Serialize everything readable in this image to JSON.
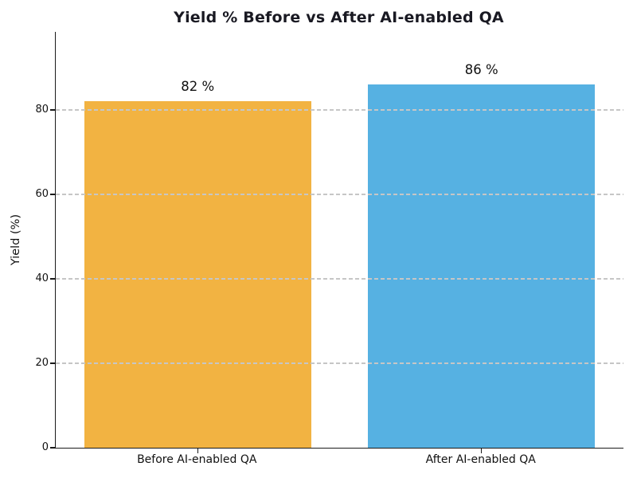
{
  "figure": {
    "background": "#ffffff"
  },
  "chart_data": {
    "type": "bar",
    "title": "Yield % Before vs After AI-enabled QA",
    "categories": [
      "Before AI-enabled QA",
      "After AI-enabled QA"
    ],
    "values": [
      82,
      86
    ],
    "value_labels": [
      "82 %",
      "86 %"
    ],
    "bar_colors": [
      "#F2B342",
      "#56B1E2"
    ],
    "xlabel": "",
    "ylabel": "Yield (%)",
    "yticks": [
      0,
      20,
      40,
      60,
      80
    ],
    "ylim": [
      0,
      98.5
    ],
    "bar_width_ratio": 0.8,
    "grid": {
      "axis": "y",
      "style": "dashed",
      "color": "#c6c6c6",
      "drawn_over_bars": true
    },
    "legend": "none",
    "spines": {
      "top": false,
      "right": false,
      "left": true,
      "bottom": true
    },
    "title_color": "#191922",
    "axis_color": "#1a1a1a",
    "text_color": "#111111"
  }
}
